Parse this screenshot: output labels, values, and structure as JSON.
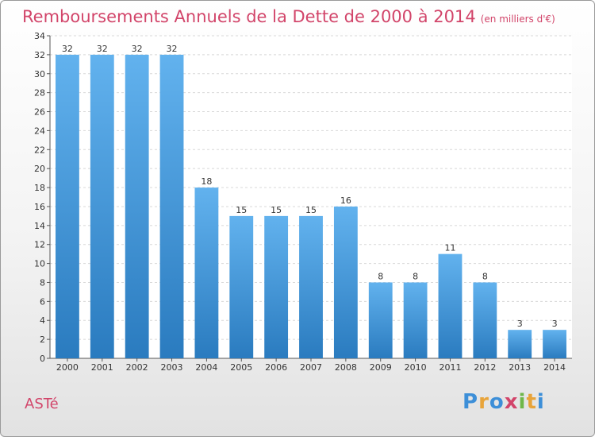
{
  "title": "Remboursements Annuels de la Dette de 2000 à 2014",
  "unit": "(en milliers d'€)",
  "commune": "ASTé",
  "logo": {
    "text": "Proxiti",
    "letters": [
      {
        "ch": "P",
        "color": "#3d8fd8"
      },
      {
        "ch": "r",
        "color": "#e8a43a"
      },
      {
        "ch": "o",
        "color": "#3d8fd8"
      },
      {
        "ch": "x",
        "color": "#d2456a"
      },
      {
        "ch": "i",
        "color": "#6fb74a"
      },
      {
        "ch": "t",
        "color": "#e8a43a"
      },
      {
        "ch": "i",
        "color": "#3d8fd8"
      }
    ]
  },
  "colors": {
    "bar_top": "#62b2ee",
    "bar_bottom": "#2a7bbf",
    "accent": "#d2456a"
  },
  "chart_data": {
    "type": "bar",
    "categories": [
      "2000",
      "2001",
      "2002",
      "2003",
      "2004",
      "2005",
      "2006",
      "2007",
      "2008",
      "2009",
      "2010",
      "2011",
      "2012",
      "2013",
      "2014"
    ],
    "values": [
      32,
      32,
      32,
      32,
      18,
      15,
      15,
      15,
      16,
      8,
      8,
      11,
      8,
      3,
      3
    ],
    "ylim": [
      0,
      34
    ],
    "yticks": [
      0,
      2,
      4,
      6,
      8,
      10,
      12,
      14,
      16,
      18,
      20,
      22,
      24,
      26,
      28,
      30,
      32,
      34
    ],
    "grid": true
  }
}
